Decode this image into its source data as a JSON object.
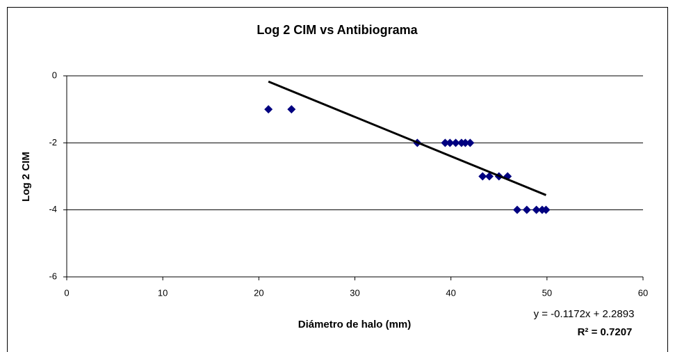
{
  "chart_data": {
    "type": "scatter",
    "title": "Log 2 CIM vs Antibiograma",
    "xlabel": "Diámetro de halo (mm)",
    "ylabel": "Log 2 CIM",
    "series": [
      {
        "color": "#000080",
        "x": [
          21.0,
          23.4,
          36.5,
          39.4,
          39.9,
          40.5,
          41.1,
          41.5,
          42.0,
          43.3,
          44.0,
          45.0,
          45.9,
          46.9,
          47.9,
          48.9,
          49.5,
          49.9
        ],
        "values": [
          -1,
          -1,
          -2,
          -2,
          -2,
          -2,
          -2,
          -2,
          -2,
          -3,
          -3,
          -3,
          -3,
          -4,
          -4,
          -4,
          -4,
          -4
        ]
      }
    ],
    "trendline": {
      "slope": -0.1172,
      "intercept": 2.2893,
      "label": "y = -0.1172x + 2.2893",
      "r2_label": "R² = 0.7207"
    },
    "xlim": [
      0,
      60
    ],
    "xticks": [
      0,
      10,
      20,
      30,
      40,
      50,
      60
    ],
    "ylim": [
      -6,
      0
    ],
    "yticks": [
      0,
      -2,
      -4,
      -6
    ],
    "grid": true
  }
}
